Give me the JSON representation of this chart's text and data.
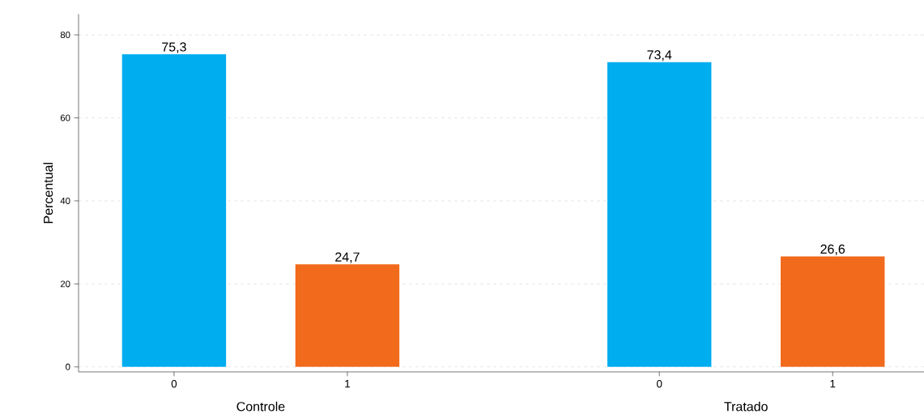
{
  "chart_data": {
    "type": "bar",
    "categories": [
      "0",
      "1",
      "0",
      "1"
    ],
    "values": [
      75.3,
      24.7,
      73.4,
      26.6
    ],
    "colors": [
      "#00adef",
      "#f26a1b",
      "#00adef",
      "#f26a1b"
    ],
    "value_labels": [
      "75,3",
      "24,7",
      "73,4",
      "26,6"
    ],
    "annotations": [
      "Controle",
      "Tratado"
    ],
    "ylabel": "Percentual",
    "ylim": [
      -1.2,
      85
    ],
    "yticks": [
      0,
      20,
      40,
      60,
      80
    ],
    "grid": "y"
  }
}
